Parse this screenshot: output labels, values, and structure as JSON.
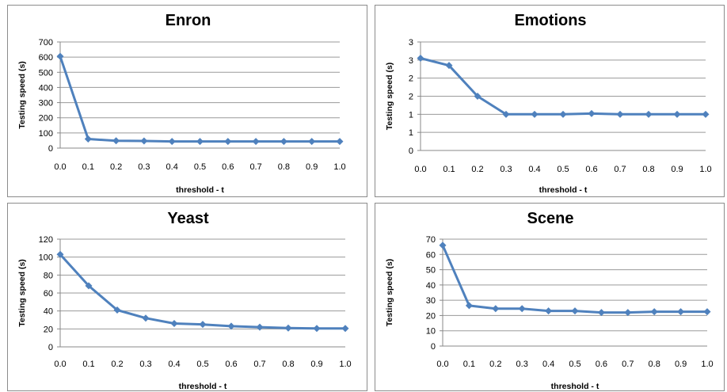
{
  "chart_data": [
    {
      "type": "line",
      "title": "Enron",
      "xlabel": "threshold - t",
      "ylabel": "Testing speed (s)",
      "x_ticks": [
        "0.0",
        "0.1",
        "0.2",
        "0.3",
        "0.4",
        "0.5",
        "0.6",
        "0.7",
        "0.8",
        "0.9",
        "1.0"
      ],
      "y_ticks": [
        "0",
        "100",
        "200",
        "300",
        "400",
        "500",
        "600",
        "700"
      ],
      "ylim": [
        0,
        700
      ],
      "grid": true,
      "color": "#4F81BD",
      "series": [
        {
          "x": [
            0.0,
            0.1,
            0.2,
            0.3,
            0.4,
            0.5,
            0.6,
            0.7,
            0.8,
            0.9,
            1.0
          ],
          "values": [
            605,
            60,
            48,
            47,
            44,
            44,
            44,
            44,
            44,
            44,
            44
          ]
        }
      ]
    },
    {
      "type": "line",
      "title": "Emotions",
      "xlabel": "threshold - t",
      "ylabel": "Testing speed (s)",
      "x_ticks": [
        "0.0",
        "0.1",
        "0.2",
        "0.3",
        "0.4",
        "0.5",
        "0.6",
        "0.7",
        "0.8",
        "0.9",
        "1.0"
      ],
      "y_ticks": [
        "0",
        "1",
        "1",
        "2",
        "2",
        "3",
        "3"
      ],
      "ylim": [
        0,
        3
      ],
      "grid": true,
      "color": "#4F81BD",
      "series": [
        {
          "x": [
            0.0,
            0.1,
            0.2,
            0.3,
            0.4,
            0.5,
            0.6,
            0.7,
            0.8,
            0.9,
            1.0
          ],
          "values": [
            2.55,
            2.35,
            1.5,
            1.0,
            1.0,
            1.0,
            1.02,
            1.0,
            1.0,
            1.0,
            1.0
          ]
        }
      ]
    },
    {
      "type": "line",
      "title": "Yeast",
      "xlabel": "threshold - t",
      "ylabel": "Testing speed (s)",
      "x_ticks": [
        "0.0",
        "0.1",
        "0.2",
        "0.3",
        "0.4",
        "0.5",
        "0.6",
        "0.7",
        "0.8",
        "0.9",
        "1.0"
      ],
      "y_ticks": [
        "0",
        "20",
        "40",
        "60",
        "80",
        "100",
        "120"
      ],
      "ylim": [
        0,
        120
      ],
      "grid": true,
      "color": "#4F81BD",
      "series": [
        {
          "x": [
            0.0,
            0.1,
            0.2,
            0.3,
            0.4,
            0.5,
            0.6,
            0.7,
            0.8,
            0.9,
            1.0
          ],
          "values": [
            103,
            68,
            41,
            32,
            26,
            25,
            23,
            22,
            21,
            20.5,
            20.5
          ]
        }
      ]
    },
    {
      "type": "line",
      "title": "Scene",
      "xlabel": "threshold - t",
      "ylabel": "Testing speed (s)",
      "x_ticks": [
        "0.0",
        "0.1",
        "0.2",
        "0.3",
        "0.4",
        "0.5",
        "0.6",
        "0.7",
        "0.8",
        "0.9",
        "1.0"
      ],
      "y_ticks": [
        "0",
        "10",
        "20",
        "30",
        "40",
        "50",
        "60",
        "70"
      ],
      "ylim": [
        0,
        70
      ],
      "grid": true,
      "color": "#4F81BD",
      "series": [
        {
          "x": [
            0.0,
            0.1,
            0.2,
            0.3,
            0.4,
            0.5,
            0.6,
            0.7,
            0.8,
            0.9,
            1.0
          ],
          "values": [
            66,
            26.5,
            24.5,
            24.5,
            23,
            23,
            22,
            22,
            22.5,
            22.5,
            22.5
          ]
        }
      ]
    }
  ]
}
